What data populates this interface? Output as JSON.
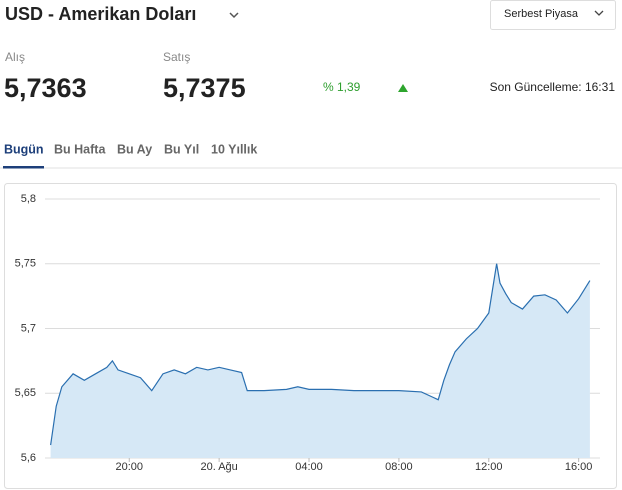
{
  "header": {
    "title": "USD - Amerikan Doları",
    "market": "Serbest Piyasa"
  },
  "quotes": {
    "buy_label": "Alış",
    "buy": "5,7363",
    "sell_label": "Satış",
    "sell": "5,7375",
    "change": "% 1,39",
    "updated": "Son Güncelleme: 16:31"
  },
  "tabs": [
    "Bugün",
    "Bu Hafta",
    "Bu Ay",
    "Bu Yıl",
    "10 Yıllık"
  ],
  "chart_data": {
    "type": "area",
    "x": [
      16.5,
      16.75,
      17,
      17.5,
      18,
      18.5,
      19,
      19.25,
      19.5,
      20,
      20.5,
      21,
      21.5,
      22,
      22.5,
      23,
      23.5,
      24,
      24.5,
      25,
      25.25,
      25.5,
      26,
      27,
      27.5,
      28,
      29,
      30,
      31,
      32,
      33,
      33.5,
      33.75,
      34,
      34.25,
      34.5,
      35,
      35.5,
      36,
      36.35,
      36.5,
      36.75,
      37,
      37.5,
      38,
      38.5,
      39,
      39.5,
      40,
      40.5
    ],
    "values": [
      5.61,
      5.64,
      5.655,
      5.665,
      5.66,
      5.665,
      5.67,
      5.675,
      5.668,
      5.665,
      5.662,
      5.652,
      5.665,
      5.668,
      5.665,
      5.67,
      5.668,
      5.67,
      5.668,
      5.666,
      5.652,
      5.652,
      5.652,
      5.653,
      5.655,
      5.653,
      5.653,
      5.652,
      5.652,
      5.652,
      5.651,
      5.647,
      5.645,
      5.66,
      5.672,
      5.682,
      5.692,
      5.7,
      5.712,
      5.75,
      5.735,
      5.727,
      5.72,
      5.715,
      5.725,
      5.726,
      5.722,
      5.712,
      5.723,
      5.737
    ],
    "color": "#2a6fb0",
    "fill": "#d6e8f6",
    "xlim": [
      16.25,
      40.95
    ],
    "ylim": [
      5.6,
      5.8
    ],
    "xticks": [
      {
        "value": 20,
        "label": "20:00"
      },
      {
        "value": 24,
        "label": "20. Ağu"
      },
      {
        "value": 28,
        "label": "04:00"
      },
      {
        "value": 32,
        "label": "08:00"
      },
      {
        "value": 36,
        "label": "12:00"
      },
      {
        "value": 40,
        "label": "16:00"
      }
    ],
    "yticks": [
      {
        "value": 5.6,
        "label": "5,6"
      },
      {
        "value": 5.65,
        "label": "5,65"
      },
      {
        "value": 5.7,
        "label": "5,7"
      },
      {
        "value": 5.75,
        "label": "5,75"
      },
      {
        "value": 5.8,
        "label": "5,8"
      }
    ],
    "grid": true
  }
}
